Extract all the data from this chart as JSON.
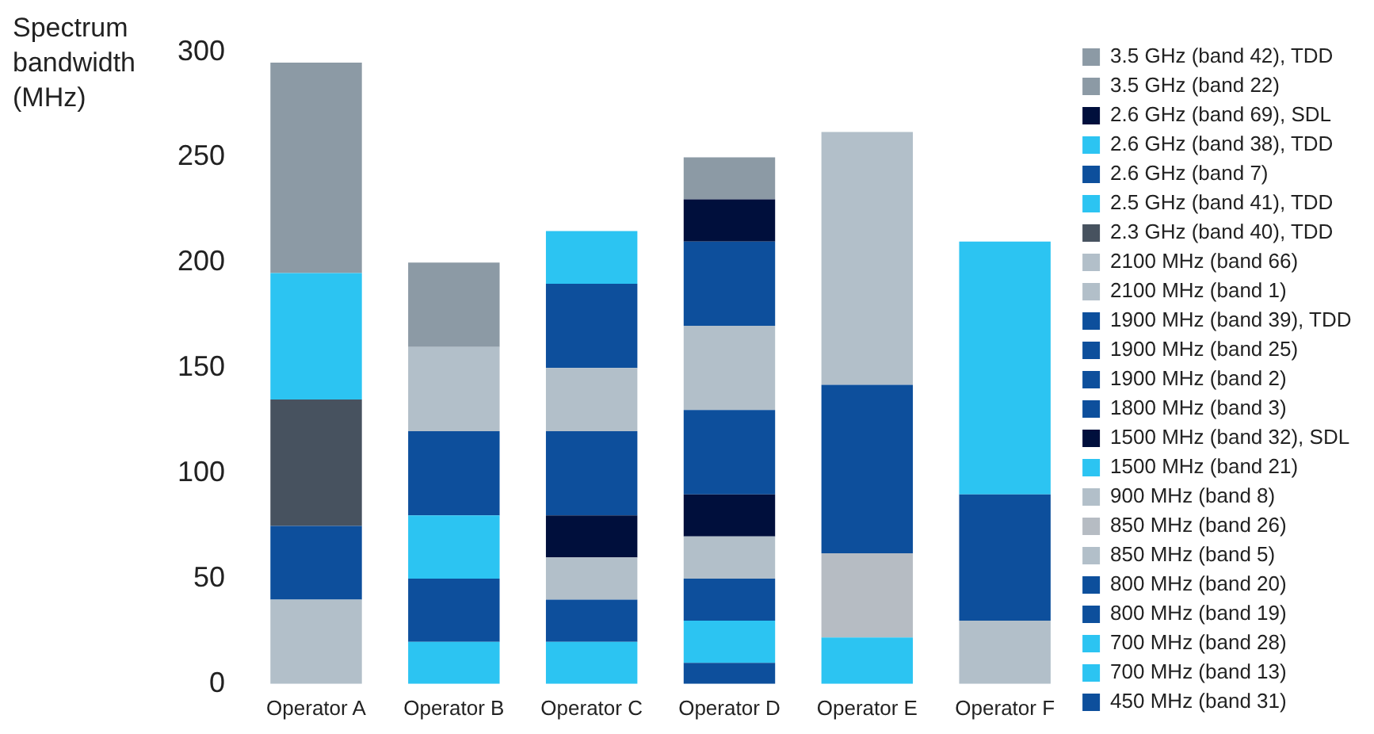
{
  "chart_data": {
    "type": "bar",
    "stacked": true,
    "ylabel": "Spectrum bandwidth (MHz)",
    "categories": [
      "Operator A",
      "Operator B",
      "Operator C",
      "Operator D",
      "Operator E",
      "Operator F"
    ],
    "ylim": [
      0,
      300
    ],
    "yticks": [
      0,
      50,
      100,
      150,
      200,
      250,
      300
    ],
    "grid": false,
    "legend": "right",
    "series": [
      {
        "name": "450 MHz (band 31)",
        "color": "#0d4f9c",
        "values": [
          null,
          null,
          null,
          10,
          null,
          null
        ]
      },
      {
        "name": "700 MHz (band 13)",
        "color": "#2cc4f2",
        "values": [
          null,
          null,
          20,
          null,
          null,
          null
        ]
      },
      {
        "name": "700 MHz (band 28)",
        "color": "#2cc4f2",
        "values": [
          null,
          20,
          null,
          20,
          22,
          null
        ]
      },
      {
        "name": "800 MHz (band 19)",
        "color": "#0d4f9c",
        "values": [
          null,
          30,
          null,
          null,
          null,
          null
        ]
      },
      {
        "name": "800 MHz (band 20)",
        "color": "#0d4f9c",
        "values": [
          null,
          null,
          20,
          20,
          null,
          null
        ]
      },
      {
        "name": "850 MHz (band 5)",
        "color": "#b2bfc9",
        "values": [
          null,
          null,
          20,
          null,
          null,
          null
        ]
      },
      {
        "name": "850 MHz (band 26)",
        "color": "#b6bcc3",
        "values": [
          null,
          null,
          null,
          null,
          40,
          null
        ]
      },
      {
        "name": "900 MHz (band 8)",
        "color": "#b2bfc9",
        "values": [
          40,
          null,
          null,
          20,
          null,
          30
        ]
      },
      {
        "name": "1500 MHz (band 21)",
        "color": "#2cc4f2",
        "values": [
          null,
          30,
          null,
          null,
          null,
          null
        ]
      },
      {
        "name": "1500 MHz (band 32), SDL",
        "color": "#000f3c",
        "values": [
          null,
          null,
          20,
          20,
          null,
          null
        ]
      },
      {
        "name": "1800 MHz (band 3)",
        "color": "#0d4f9c",
        "values": [
          35,
          40,
          null,
          40,
          null,
          60
        ]
      },
      {
        "name": "1900 MHz (band 2)",
        "color": "#0d4f9c",
        "values": [
          null,
          null,
          40,
          null,
          null,
          null
        ]
      },
      {
        "name": "1900 MHz (band 25)",
        "color": "#0d4f9c",
        "values": [
          null,
          null,
          null,
          null,
          80,
          null
        ]
      },
      {
        "name": "1900 MHz (band 39), TDD",
        "color": "#0d4f9c",
        "values": [
          null,
          null,
          null,
          null,
          null,
          null
        ]
      },
      {
        "name": "2100 MHz (band 1)",
        "color": "#b2bfc9",
        "values": [
          null,
          40,
          null,
          40,
          null,
          null
        ]
      },
      {
        "name": "2100 MHz (band 66)",
        "color": "#b2bfc9",
        "values": [
          null,
          null,
          30,
          null,
          120,
          null
        ]
      },
      {
        "name": "2.3 GHz (band 40), TDD",
        "color": "#47525f",
        "values": [
          60,
          null,
          null,
          null,
          null,
          null
        ]
      },
      {
        "name": "2.5 GHz (band 41), TDD",
        "color": "#2cc4f2",
        "values": [
          60,
          null,
          null,
          null,
          null,
          120
        ]
      },
      {
        "name": "2.6 GHz (band 7)",
        "color": "#0d4f9c",
        "values": [
          null,
          null,
          40,
          40,
          null,
          null
        ]
      },
      {
        "name": "2.6 GHz (band 38), TDD",
        "color": "#2cc4f2",
        "values": [
          null,
          null,
          25,
          null,
          null,
          null
        ]
      },
      {
        "name": "2.6 GHz (band 69), SDL",
        "color": "#000f3c",
        "values": [
          null,
          null,
          null,
          20,
          null,
          null
        ]
      },
      {
        "name": "3.5 GHz (band 22)",
        "color": "#8c9aa5",
        "values": [
          null,
          40,
          null,
          null,
          null,
          null
        ]
      },
      {
        "name": "3.5 GHz (band 42), TDD",
        "color": "#8c9aa5",
        "values": [
          100,
          null,
          null,
          20,
          null,
          null
        ]
      }
    ]
  }
}
